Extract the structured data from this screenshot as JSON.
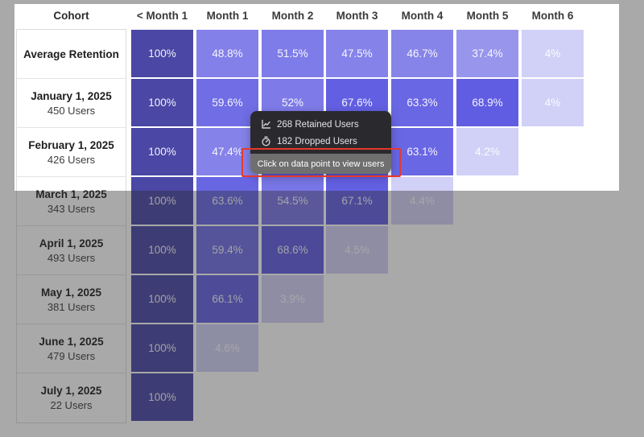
{
  "header": {
    "cohort_label": "Cohort",
    "months": [
      "< Month 1",
      "Month 1",
      "Month 2",
      "Month 3",
      "Month 4",
      "Month 5",
      "Month 6"
    ]
  },
  "rows": [
    {
      "cohort": "Average Retention",
      "users": null,
      "cells": [
        "100%",
        "48.8%",
        "51.5%",
        "47.5%",
        "46.7%",
        "37.4%",
        "4%"
      ]
    },
    {
      "cohort": "January 1, 2025",
      "users": "450 Users",
      "cells": [
        "100%",
        "59.6%",
        "52%",
        "67.6%",
        "63.3%",
        "68.9%",
        "4%"
      ]
    },
    {
      "cohort": "February 1, 2025",
      "users": "426 Users",
      "cells": [
        "100%",
        "47.4%",
        "obscured",
        "obscured",
        "63.1%",
        "4.2%",
        null
      ]
    },
    {
      "cohort": "March 1, 2025",
      "users": "343 Users",
      "cells": [
        "100%",
        "63.6%",
        "54.5%",
        "67.1%",
        "4.4%",
        null,
        null
      ]
    },
    {
      "cohort": "April 1, 2025",
      "users": "493 Users",
      "cells": [
        "100%",
        "59.4%",
        "68.6%",
        "4.5%",
        null,
        null,
        null
      ]
    },
    {
      "cohort": "May 1, 2025",
      "users": "381 Users",
      "cells": [
        "100%",
        "66.1%",
        "3.9%",
        null,
        null,
        null,
        null
      ]
    },
    {
      "cohort": "June 1, 2025",
      "users": "479 Users",
      "cells": [
        "100%",
        "4.6%",
        null,
        null,
        null,
        null,
        null
      ]
    },
    {
      "cohort": "July 1, 2025",
      "users": "22 Users",
      "cells": [
        "100%",
        null,
        null,
        null,
        null,
        null,
        null
      ]
    }
  ],
  "tooltip": {
    "retained": "268 Retained Users",
    "dropped": "182 Dropped Users",
    "footer": "Click on data point to view users"
  },
  "colors": {
    "cell_base_rgb": "61,57,220",
    "cell_full": "#4a47a5",
    "obscured_cell_peek": "#5a57dd",
    "tooltip_bg": "#2a2a2e",
    "tooltip_footer_bg": "#6f6f6f",
    "tooltip_text": "#e4e4e7",
    "annotation_red": "#e8382a",
    "overlay": "rgba(45,45,45,0.41)"
  },
  "chart_data": {
    "type": "heatmap",
    "title": "Cohort retention table",
    "categories": [
      "< Month 1",
      "Month 1",
      "Month 2",
      "Month 3",
      "Month 4",
      "Month 5",
      "Month 6"
    ],
    "series": [
      {
        "name": "Average Retention",
        "cohort_size": null,
        "values": [
          100,
          48.8,
          51.5,
          47.5,
          46.7,
          37.4,
          4
        ]
      },
      {
        "name": "January 1, 2025",
        "cohort_size": 450,
        "values": [
          100,
          59.6,
          52,
          67.6,
          63.3,
          68.9,
          4
        ]
      },
      {
        "name": "February 1, 2025",
        "cohort_size": 426,
        "values": [
          100,
          47.4,
          null,
          null,
          63.1,
          4.2,
          null
        ]
      },
      {
        "name": "March 1, 2025",
        "cohort_size": 343,
        "values": [
          100,
          63.6,
          54.5,
          67.1,
          4.4,
          null,
          null
        ]
      },
      {
        "name": "April 1, 2025",
        "cohort_size": 493,
        "values": [
          100,
          59.4,
          68.6,
          4.5,
          null,
          null,
          null
        ]
      },
      {
        "name": "May 1, 2025",
        "cohort_size": 381,
        "values": [
          100,
          66.1,
          3.9,
          null,
          null,
          null,
          null
        ]
      },
      {
        "name": "June 1, 2025",
        "cohort_size": 479,
        "values": [
          100,
          4.6,
          null,
          null,
          null,
          null,
          null
        ]
      },
      {
        "name": "July 1, 2025",
        "cohort_size": 22,
        "values": [
          100,
          null,
          null,
          null,
          null,
          null,
          null
        ]
      }
    ],
    "legend_position": "none",
    "grid": false
  }
}
